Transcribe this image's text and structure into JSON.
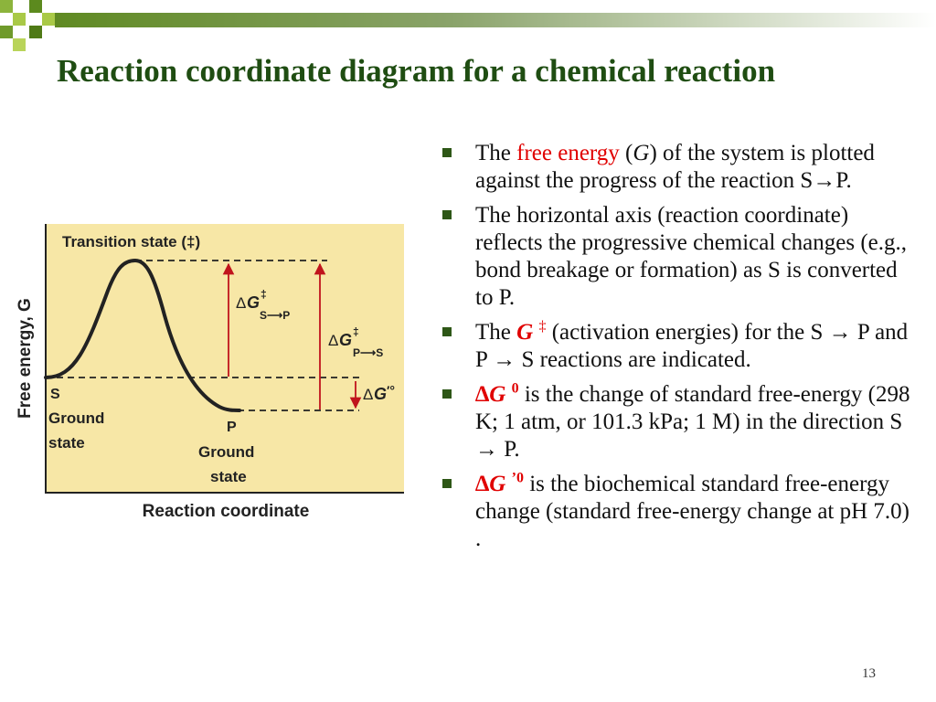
{
  "slide": {
    "title": "Reaction coordinate diagram for a chemical reaction",
    "page_number": "13",
    "colors": {
      "title": "#1f4d12",
      "accent_red": "#e00000",
      "bullet": "#2e5717",
      "plot_bg": "#f7e7a6",
      "arrow": "#c0141c"
    }
  },
  "diagram": {
    "y_axis_label": "Free energy, G",
    "y_axis_label_var": "G",
    "x_axis_label": "Reaction coordinate",
    "transition_state_label": "Transition state (‡)",
    "s_label": "S",
    "s_ground_1": "Ground",
    "s_ground_2": "state",
    "p_label": "P",
    "p_ground_1": "Ground",
    "p_ground_2": "state",
    "dg_sp": {
      "delta": "Δ",
      "g": "G",
      "dagger": "‡",
      "sub": "S⟶P"
    },
    "dg_ps": {
      "delta": "Δ",
      "g": "G",
      "dagger": "‡",
      "sub": "P⟶S"
    },
    "dg_std": {
      "delta": "Δ",
      "g": "G",
      "mark": "′°"
    }
  },
  "bullets": [
    {
      "pre": "The ",
      "red": "free energy",
      "paren_open": " (",
      "var": "G",
      "rest": ") of the system is plotted against the progress of the reaction S→P."
    },
    {
      "text": "The horizontal axis (reaction coordinate) reflects the progressive chemical changes (e.g., bond breakage or formation) as S is converted to P."
    },
    {
      "pre": "The ",
      "red_sym": "G",
      "red_sup": "‡",
      "rest": " (activation energies) for the S → P and P → S reactions are indicated."
    },
    {
      "red_delta": "∆",
      "red_sym": "G",
      "red_sup": "0",
      "rest": " is the change of standard free-energy (298 K; 1 atm, or 101.3 kPa; 1 M) in the direction S → P."
    },
    {
      "red_delta": "∆",
      "red_sym": "G",
      "red_sup": "’0",
      "rest": " is the biochemical standard free-energy change (standard free-energy change at pH 7.0) ."
    }
  ]
}
